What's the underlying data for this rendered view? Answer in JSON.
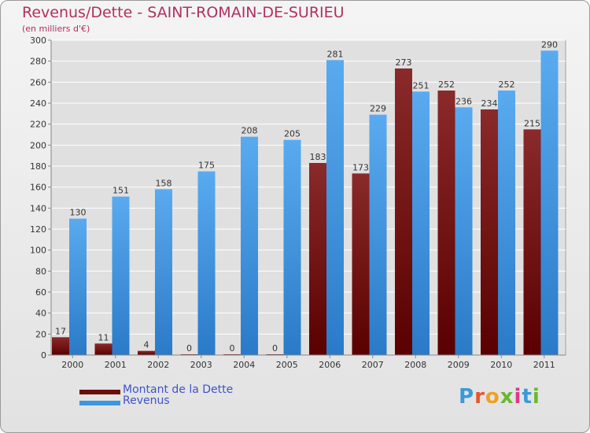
{
  "header": {
    "title": "Revenus/Dette - SAINT-ROMAIN-DE-SURIEU",
    "subtitle": "(en milliers d'€)"
  },
  "legend": {
    "items": [
      {
        "label": "Montant de la Dette",
        "color": "#6b0d0d"
      },
      {
        "label": "Revenus",
        "color": "#3c96e0"
      }
    ]
  },
  "logo": {
    "text": "Proxiti"
  },
  "chart_data": {
    "type": "bar",
    "categories": [
      "2000",
      "2001",
      "2002",
      "2003",
      "2004",
      "2005",
      "2006",
      "2007",
      "2008",
      "2009",
      "2010",
      "2011"
    ],
    "series": [
      {
        "name": "Montant de la Dette",
        "values": [
          17,
          11,
          4,
          0,
          0,
          0,
          183,
          173,
          273,
          252,
          234,
          215
        ]
      },
      {
        "name": "Revenus",
        "values": [
          130,
          151,
          158,
          175,
          208,
          205,
          281,
          229,
          251,
          236,
          252,
          290
        ]
      }
    ],
    "ylim": [
      0,
      300
    ],
    "yticks": [
      0,
      20,
      40,
      60,
      80,
      100,
      120,
      140,
      160,
      180,
      200,
      220,
      240,
      260,
      280,
      300
    ],
    "grid": true,
    "legend_position": "bottom-left"
  }
}
